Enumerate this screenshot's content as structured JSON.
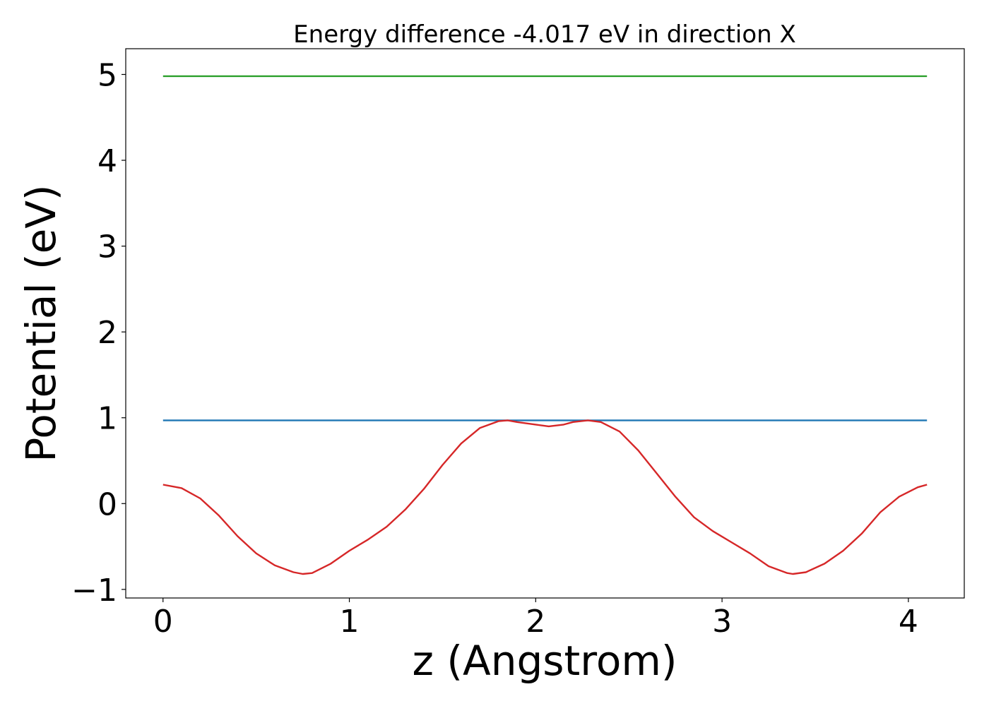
{
  "chart_data": {
    "type": "line",
    "title": "Energy difference -4.017 eV in direction X",
    "xlabel": "z (Angstrom)",
    "ylabel": "Potential (eV)",
    "xlim": [
      -0.2,
      4.3
    ],
    "ylim": [
      -1.1,
      5.3
    ],
    "xticks": [
      0,
      1,
      2,
      3,
      4
    ],
    "xtick_labels": [
      "0",
      "1",
      "2",
      "3",
      "4"
    ],
    "yticks": [
      -1,
      0,
      1,
      2,
      3,
      4,
      5
    ],
    "ytick_labels": [
      "−1",
      "0",
      "1",
      "2",
      "3",
      "4",
      "5"
    ],
    "grid": false,
    "series": [
      {
        "color": "#2ca02c",
        "x": [
          0,
          4.1
        ],
        "y": [
          4.98,
          4.98
        ]
      },
      {
        "color": "#1f77b4",
        "x": [
          0,
          4.1
        ],
        "y": [
          0.97,
          0.97
        ]
      },
      {
        "color": "#d62728",
        "x": [
          0,
          0.1,
          0.2,
          0.3,
          0.4,
          0.5,
          0.6,
          0.7,
          0.75,
          0.8,
          0.9,
          1.0,
          1.1,
          1.2,
          1.3,
          1.4,
          1.5,
          1.6,
          1.7,
          1.8,
          1.85,
          1.9,
          2.0,
          2.07,
          2.15,
          2.2,
          2.28,
          2.35,
          2.45,
          2.55,
          2.65,
          2.75,
          2.85,
          2.95,
          3.05,
          3.15,
          3.25,
          3.35,
          3.38,
          3.45,
          3.55,
          3.65,
          3.75,
          3.85,
          3.95,
          4.05,
          4.1
        ],
        "y": [
          0.22,
          0.18,
          0.06,
          -0.14,
          -0.38,
          -0.58,
          -0.72,
          -0.8,
          -0.82,
          -0.81,
          -0.7,
          -0.55,
          -0.42,
          -0.27,
          -0.07,
          0.17,
          0.45,
          0.7,
          0.88,
          0.96,
          0.97,
          0.95,
          0.92,
          0.9,
          0.92,
          0.95,
          0.97,
          0.95,
          0.84,
          0.62,
          0.35,
          0.08,
          -0.16,
          -0.32,
          -0.45,
          -0.58,
          -0.73,
          -0.81,
          -0.82,
          -0.8,
          -0.7,
          -0.55,
          -0.35,
          -0.1,
          0.08,
          0.19,
          0.22
        ]
      }
    ]
  }
}
